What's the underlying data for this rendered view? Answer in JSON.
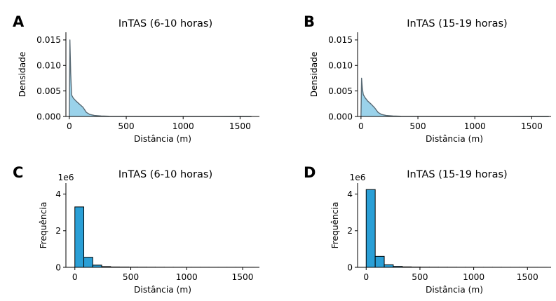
{
  "chart_data": [
    {
      "panel": "A",
      "type": "area",
      "title": "InTAS (6-10 horas)",
      "xlabel": "Distância (m)",
      "ylabel": "Densidade",
      "xlim": [
        -30,
        1670
      ],
      "ylim": [
        0,
        0.0165
      ],
      "xticks": [
        0,
        500,
        1000,
        1500
      ],
      "xtick_labels": [
        "0",
        "500",
        "1000",
        "1500"
      ],
      "yticks": [
        0,
        0.005,
        0.01,
        0.015
      ],
      "ytick_labels": [
        "0.000",
        "0.005",
        "0.010",
        "0.015"
      ],
      "fill_color": "#8fcde8",
      "line_color": "#596a74",
      "x": [
        0,
        5,
        12,
        20,
        35,
        60,
        90,
        120,
        150,
        180,
        220,
        280,
        350,
        450,
        550,
        700,
        900,
        1100,
        1300,
        1500,
        1600
      ],
      "y": [
        0.0,
        0.015,
        0.0085,
        0.0042,
        0.0036,
        0.003,
        0.0024,
        0.0018,
        0.0008,
        0.0004,
        0.0002,
        0.0001,
        4e-05,
        2e-05,
        3e-05,
        1e-05,
        5e-06,
        3e-06,
        3e-06,
        2e-06,
        0.0
      ]
    },
    {
      "panel": "B",
      "type": "area",
      "title": "InTAS (15-19 horas)",
      "xlabel": "Distância (m)",
      "ylabel": "Densidade",
      "xlim": [
        -30,
        1670
      ],
      "ylim": [
        0,
        0.0165
      ],
      "xticks": [
        0,
        500,
        1000,
        1500
      ],
      "xtick_labels": [
        "0",
        "500",
        "1000",
        "1500"
      ],
      "yticks": [
        0,
        0.005,
        0.01,
        0.015
      ],
      "ytick_labels": [
        "0.000",
        "0.005",
        "0.010",
        "0.015"
      ],
      "fill_color": "#8fcde8",
      "line_color": "#596a74",
      "x": [
        0,
        5,
        12,
        20,
        35,
        60,
        90,
        120,
        150,
        180,
        220,
        280,
        350,
        450,
        550,
        700,
        900,
        1100,
        1300,
        1500,
        1650
      ],
      "y": [
        0.0,
        0.0075,
        0.0055,
        0.0043,
        0.0037,
        0.003,
        0.0024,
        0.0017,
        0.0008,
        0.0004,
        0.0002,
        0.0001,
        4e-05,
        2e-05,
        3e-05,
        1e-05,
        5e-06,
        3e-06,
        3e-06,
        2e-06,
        0.0
      ]
    },
    {
      "panel": "C",
      "type": "bar",
      "title": "InTAS (6-10 horas)",
      "xlabel": "Distância (m)",
      "ylabel": "Frequência",
      "y_offset_label": "1e6",
      "xlim": [
        -80,
        1650
      ],
      "ylim": [
        0,
        4.6
      ],
      "xticks": [
        0,
        500,
        1000,
        1500
      ],
      "xtick_labels": [
        "0",
        "500",
        "1000",
        "1500"
      ],
      "yticks": [
        0,
        2,
        4
      ],
      "ytick_labels": [
        "0",
        "2",
        "4"
      ],
      "bar_color": "#2a9fd6",
      "bin_width": 80,
      "bin_start": 0,
      "values": [
        3.3,
        0.55,
        0.12,
        0.04,
        0.02,
        0.015,
        0.01,
        0.008,
        0.006,
        0.005,
        0.004,
        0.004,
        0.003,
        0.003,
        0.003,
        0.002,
        0.002,
        0.002,
        0.002,
        0.001
      ]
    },
    {
      "panel": "D",
      "type": "bar",
      "title": "InTAS (15-19 horas)",
      "xlabel": "Distância (m)",
      "ylabel": "Frequência",
      "y_offset_label": "1e6",
      "xlim": [
        -80,
        1720
      ],
      "ylim": [
        0,
        4.6
      ],
      "xticks": [
        0,
        500,
        1000,
        1500
      ],
      "xtick_labels": [
        "0",
        "500",
        "1000",
        "1500"
      ],
      "yticks": [
        0,
        2,
        4
      ],
      "ytick_labels": [
        "0",
        "2",
        "4"
      ],
      "bar_color": "#2a9fd6",
      "bin_width": 84,
      "bin_start": 0,
      "values": [
        4.25,
        0.6,
        0.14,
        0.05,
        0.025,
        0.015,
        0.01,
        0.008,
        0.006,
        0.005,
        0.004,
        0.004,
        0.003,
        0.003,
        0.003,
        0.002,
        0.002,
        0.002,
        0.002,
        0.001
      ]
    }
  ]
}
